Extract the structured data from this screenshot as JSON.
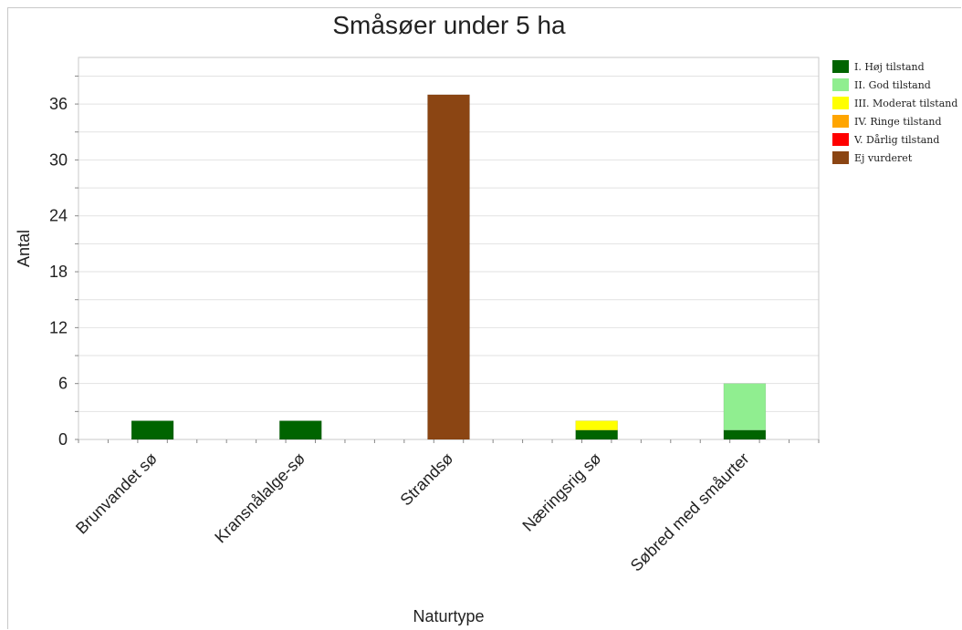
{
  "chart_data": {
    "type": "bar",
    "stacked": true,
    "title": "Småsøer under 5 ha",
    "xlabel": "Naturtype",
    "ylabel": "Antal",
    "ylim": [
      0,
      41
    ],
    "yticks": [
      0,
      6,
      12,
      18,
      24,
      30,
      36
    ],
    "grid": true,
    "legend_position": "right",
    "categories": [
      "Brunvandet sø",
      "Kransnålalge-sø",
      "Strandsø",
      "Næringsrig sø",
      "Søbred med småurter"
    ],
    "series": [
      {
        "name": "I. Høj tilstand",
        "color": "#006400",
        "values": [
          2,
          2,
          0,
          1,
          1
        ]
      },
      {
        "name": "II. God tilstand",
        "color": "#90ee90",
        "values": [
          0,
          0,
          0,
          0,
          5
        ]
      },
      {
        "name": "III. Moderat tilstand",
        "color": "#ffff00",
        "values": [
          0,
          0,
          0,
          1,
          0
        ]
      },
      {
        "name": "IV. Ringe tilstand",
        "color": "#ffa500",
        "values": [
          0,
          0,
          0,
          0,
          0
        ]
      },
      {
        "name": "V. Dårlig tilstand",
        "color": "#ff0000",
        "values": [
          0,
          0,
          0,
          0,
          0
        ]
      },
      {
        "name": "Ej vurderet",
        "color": "#8b4513",
        "values": [
          0,
          0,
          37,
          0,
          0
        ]
      }
    ]
  }
}
